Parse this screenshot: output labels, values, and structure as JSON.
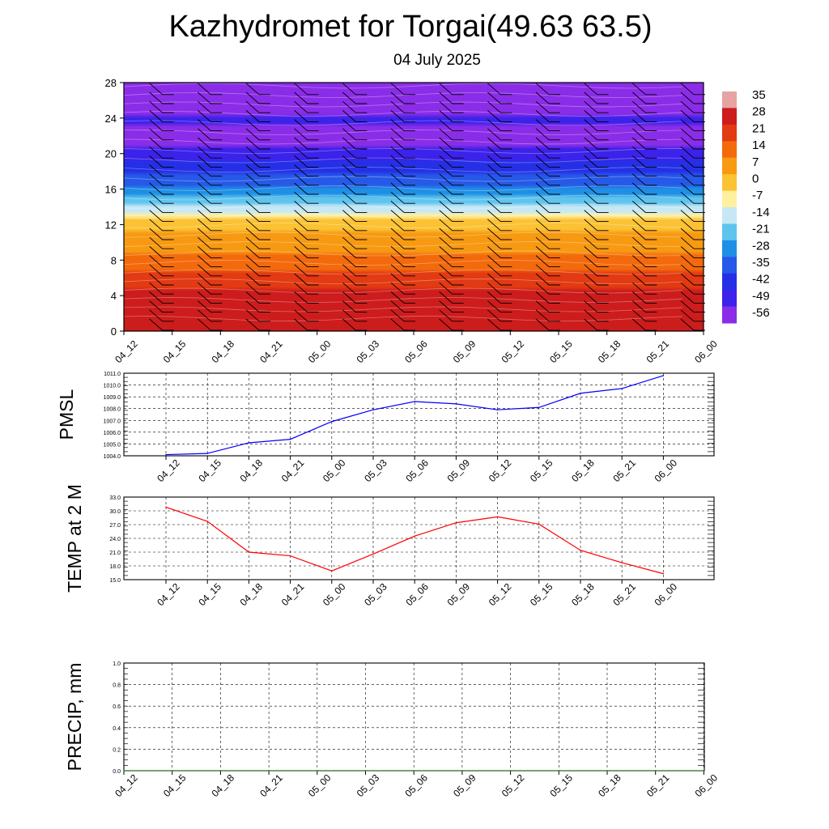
{
  "header": {
    "title": "Kazhydromet for Torgai(49.63 63.5)",
    "date": "04 July 2025"
  },
  "chart_data": [
    {
      "type": "heatmap",
      "title": "",
      "x_ticks": [
        "04_12",
        "04_15",
        "04_18",
        "04_21",
        "05_00",
        "05_03",
        "05_06",
        "05_09",
        "05_12",
        "05_15",
        "05_18",
        "05_21",
        "06_00"
      ],
      "y_ticks": [
        "0",
        "4",
        "8",
        "12",
        "16",
        "20",
        "24",
        "28"
      ],
      "ylim": [
        0,
        28
      ],
      "colorbar": {
        "labels": [
          "35",
          "28",
          "21",
          "14",
          "7",
          "0",
          "-7",
          "-14",
          "-21",
          "-28",
          "-35",
          "-42",
          "-49",
          "-56"
        ],
        "colors": [
          "#e7a2a2",
          "#cd1c1c",
          "#e23a12",
          "#f36a0c",
          "#f79a12",
          "#fbc234",
          "#fff0a0",
          "#c6e8f5",
          "#5ec4ee",
          "#1f8fe6",
          "#2659e8",
          "#2530e6",
          "#3c22ea",
          "#8b2de8"
        ]
      },
      "temperature_profile_by_height": [
        {
          "y": 0,
          "t": 30
        },
        {
          "y": 4,
          "t": 27
        },
        {
          "y": 8,
          "t": 12
        },
        {
          "y": 12,
          "t": 2
        },
        {
          "y": 13,
          "t": -7
        },
        {
          "y": 14,
          "t": -16
        },
        {
          "y": 16,
          "t": -30
        },
        {
          "y": 19,
          "t": -44
        },
        {
          "y": 22,
          "t": -58
        },
        {
          "y": 24,
          "t": -50
        },
        {
          "y": 28,
          "t": -70
        }
      ],
      "wind_barbs": "present at every time step and level"
    },
    {
      "type": "line",
      "ylabel": "PMSL",
      "x": [
        "04_12",
        "04_15",
        "04_18",
        "04_21",
        "05_00",
        "05_03",
        "05_06",
        "05_09",
        "05_12",
        "05_15",
        "05_18",
        "05_21",
        "06_00"
      ],
      "y_ticks": [
        "1004.0",
        "1005.0",
        "1006.0",
        "1007.0",
        "1008.0",
        "1009.0",
        "1010.0",
        "1011.0"
      ],
      "ylim": [
        1004.0,
        1011.0
      ],
      "series": [
        {
          "values": [
            1004.1,
            1004.2,
            1005.1,
            1005.4,
            1006.9,
            1007.9,
            1008.6,
            1008.4,
            1007.9,
            1008.1,
            1009.3,
            1009.7,
            1010.8
          ],
          "color": "#0000ff"
        }
      ],
      "grid": true
    },
    {
      "type": "line",
      "ylabel": "TEMP at 2 M",
      "x": [
        "04_12",
        "04_15",
        "04_18",
        "04_21",
        "05_00",
        "05_03",
        "05_06",
        "05_09",
        "05_12",
        "05_15",
        "05_18",
        "05_21",
        "06_00"
      ],
      "y_ticks": [
        "15.0",
        "18.0",
        "21.0",
        "24.0",
        "27.0",
        "30.0",
        "33.0"
      ],
      "ylim": [
        15.0,
        33.0
      ],
      "series": [
        {
          "values": [
            30.8,
            27.7,
            21.0,
            20.2,
            16.9,
            20.6,
            24.5,
            27.4,
            28.7,
            27.1,
            21.4,
            18.7,
            16.3
          ],
          "color": "#ff0000"
        }
      ],
      "grid": true
    },
    {
      "type": "line",
      "ylabel": "PRECIP, mm",
      "x": [
        "04_12",
        "04_15",
        "04_18",
        "04_21",
        "05_00",
        "05_03",
        "05_06",
        "05_09",
        "05_12",
        "05_15",
        "05_18",
        "05_21",
        "06_00"
      ],
      "y_ticks": [
        "0.0",
        "0.2",
        "0.4",
        "0.6",
        "0.8",
        "1.0"
      ],
      "ylim": [
        0.0,
        1.0
      ],
      "series": [
        {
          "values": [
            0,
            0,
            0,
            0,
            0,
            0,
            0,
            0,
            0,
            0,
            0,
            0,
            0
          ],
          "color": "#2e7d32"
        }
      ],
      "grid": true
    }
  ]
}
